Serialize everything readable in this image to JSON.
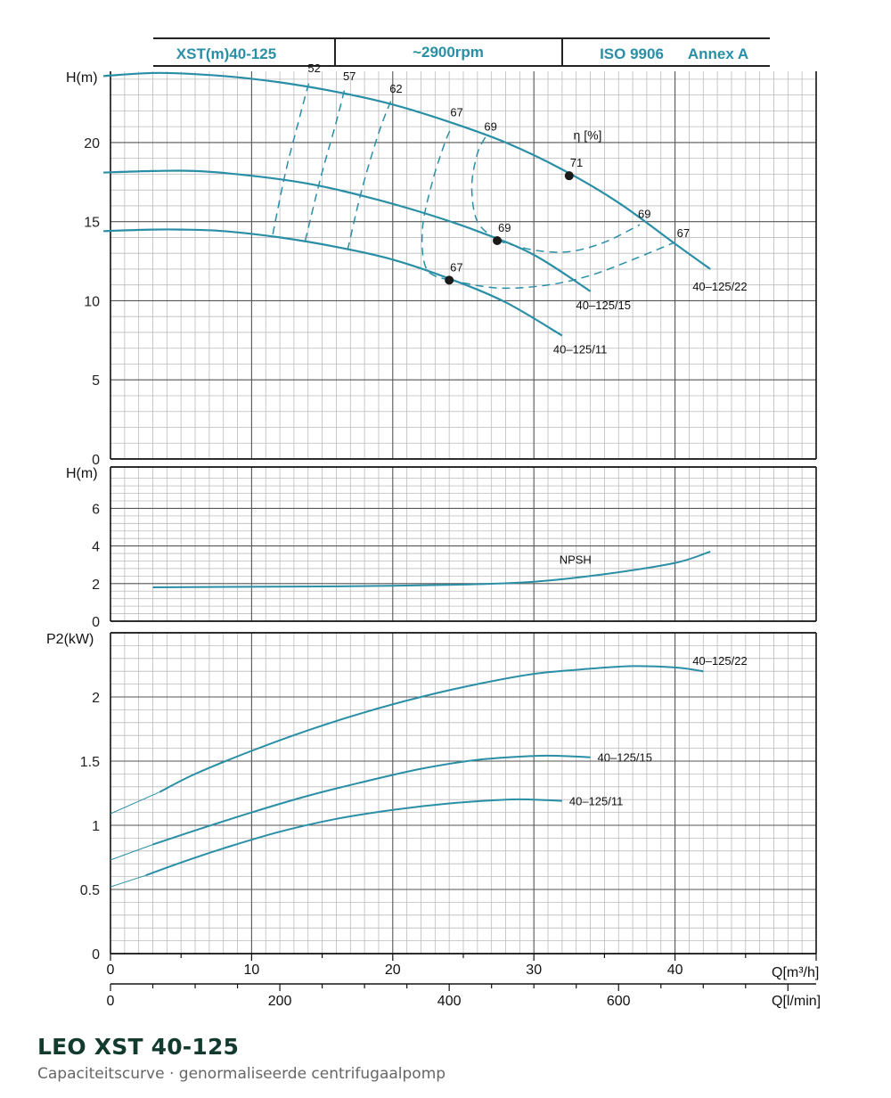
{
  "header": {
    "model": "XST(m)40-125",
    "speed": "~2900rpm",
    "standard": "ISO 9906",
    "annex": "Annex A"
  },
  "footer": {
    "title": "LEO XST 40-125",
    "subtitle": "Capaciteitscurve  ·  genormaliseerde centrifugaalpomp"
  },
  "colors": {
    "curve": "#2a8fa6",
    "header_text": "#2a8fa6",
    "grid_major": "#555555",
    "grid_minor": "#bbbbbb",
    "marker": "#1a1a1a"
  },
  "chart_data": [
    {
      "type": "line",
      "panel": "head",
      "ylabel": "H(m)",
      "xlim": [
        0,
        50
      ],
      "ylim": [
        0,
        24.5
      ],
      "yticks": [
        0,
        5,
        10,
        15,
        20
      ],
      "eta_label": "η [%]",
      "series": [
        {
          "name": "40-125/22",
          "x": [
            -0.5,
            3.5,
            8,
            12,
            16,
            20,
            24,
            28,
            32,
            36,
            40,
            42.5
          ],
          "y": [
            24.2,
            24.4,
            24.2,
            23.8,
            23.2,
            22.4,
            21.3,
            20.0,
            18.3,
            16.2,
            13.6,
            12.0
          ]
        },
        {
          "name": "40-125/15",
          "x": [
            -0.5,
            3,
            6,
            10,
            14,
            18,
            22,
            26,
            30,
            34
          ],
          "y": [
            18.1,
            18.2,
            18.2,
            17.9,
            17.4,
            16.6,
            15.6,
            14.4,
            12.9,
            10.6
          ]
        },
        {
          "name": "40-125/11",
          "x": [
            -0.5,
            3,
            5,
            8,
            12,
            16,
            20,
            24,
            28,
            32
          ],
          "y": [
            14.4,
            14.5,
            14.5,
            14.4,
            14.0,
            13.4,
            12.6,
            11.4,
            9.9,
            7.8
          ]
        }
      ],
      "efficiency_curves": [
        {
          "label": "52",
          "x": [
            11.5,
            12.4,
            13.4,
            14.1
          ],
          "y": [
            14.2,
            18.1,
            21.6,
            23.9
          ]
        },
        {
          "label": "57",
          "x": [
            13.8,
            14.9,
            16.0,
            16.6
          ],
          "y": [
            13.8,
            17.8,
            21.3,
            23.4
          ]
        },
        {
          "label": "62",
          "x": [
            16.8,
            17.8,
            19.0,
            19.9
          ],
          "y": [
            13.2,
            17.0,
            20.6,
            22.7
          ]
        },
        {
          "label": "67",
          "x": [
            24.0,
            22.4,
            22.1,
            22.8,
            23.7,
            24.2
          ],
          "y": [
            11.3,
            12.0,
            14.5,
            17.5,
            20.0,
            21.0
          ]
        },
        {
          "label": "67",
          "x": [
            24.0,
            27.5,
            31.0,
            34.0,
            37.0,
            40.0
          ],
          "y": [
            11.3,
            10.8,
            11.0,
            11.6,
            12.6,
            13.7
          ]
        },
        {
          "label": "69",
          "x": [
            27.4,
            26.0,
            25.6,
            26.0,
            26.6
          ],
          "y": [
            13.8,
            15.0,
            17.2,
            19.3,
            20.4
          ]
        },
        {
          "label": "69",
          "x": [
            27.4,
            30.0,
            32.5,
            35.0,
            37.5
          ],
          "y": [
            13.8,
            13.2,
            13.1,
            13.7,
            14.8
          ]
        }
      ],
      "bep_points": [
        {
          "label": "71",
          "x": 32.5,
          "y": 17.9
        },
        {
          "label": "69",
          "x": 27.4,
          "y": 13.8
        },
        {
          "label": "67",
          "x": 24.0,
          "y": 11.3
        }
      ]
    },
    {
      "type": "line",
      "panel": "npsh",
      "ylabel": "H(m)",
      "xlim": [
        0,
        50
      ],
      "ylim": [
        0,
        8.2
      ],
      "yticks": [
        0,
        2,
        4,
        6
      ],
      "series": [
        {
          "name": "NPSH",
          "x": [
            3,
            10,
            15,
            20,
            25,
            30,
            35,
            40,
            42.5
          ],
          "y": [
            1.8,
            1.83,
            1.85,
            1.88,
            1.95,
            2.1,
            2.5,
            3.1,
            3.7
          ]
        }
      ]
    },
    {
      "type": "line",
      "panel": "power",
      "ylabel": "P2(kW)",
      "xlabel": "Q[m³/h]",
      "xlabel2": "Q[l/min]",
      "xlim": [
        0,
        50
      ],
      "ylim": [
        0,
        2.5
      ],
      "yticks": [
        0,
        0.5,
        1,
        1.5,
        2
      ],
      "ytick_labels": [
        "0",
        "0.5",
        "1",
        "1.5",
        "2"
      ],
      "xticks": [
        0,
        10,
        20,
        30,
        40
      ],
      "lmin_ticks": [
        0,
        200,
        400,
        600
      ],
      "series": [
        {
          "name": "40-125/22",
          "x": [
            3.5,
            6,
            10,
            14,
            18,
            22,
            26,
            30,
            34,
            37,
            40,
            42
          ],
          "y": [
            1.26,
            1.4,
            1.58,
            1.74,
            1.88,
            2.0,
            2.1,
            2.18,
            2.22,
            2.24,
            2.23,
            2.2
          ]
        },
        {
          "name": "40-125/15",
          "x": [
            3,
            6,
            10,
            14,
            18,
            22,
            26,
            30,
            32,
            34
          ],
          "y": [
            0.85,
            0.96,
            1.1,
            1.23,
            1.34,
            1.44,
            1.51,
            1.54,
            1.54,
            1.53
          ]
        },
        {
          "name": "40-125/11",
          "x": [
            2.5,
            5,
            8,
            12,
            16,
            20,
            24,
            28,
            30,
            32
          ],
          "y": [
            0.61,
            0.71,
            0.82,
            0.95,
            1.05,
            1.12,
            1.17,
            1.2,
            1.2,
            1.19
          ]
        }
      ]
    }
  ]
}
